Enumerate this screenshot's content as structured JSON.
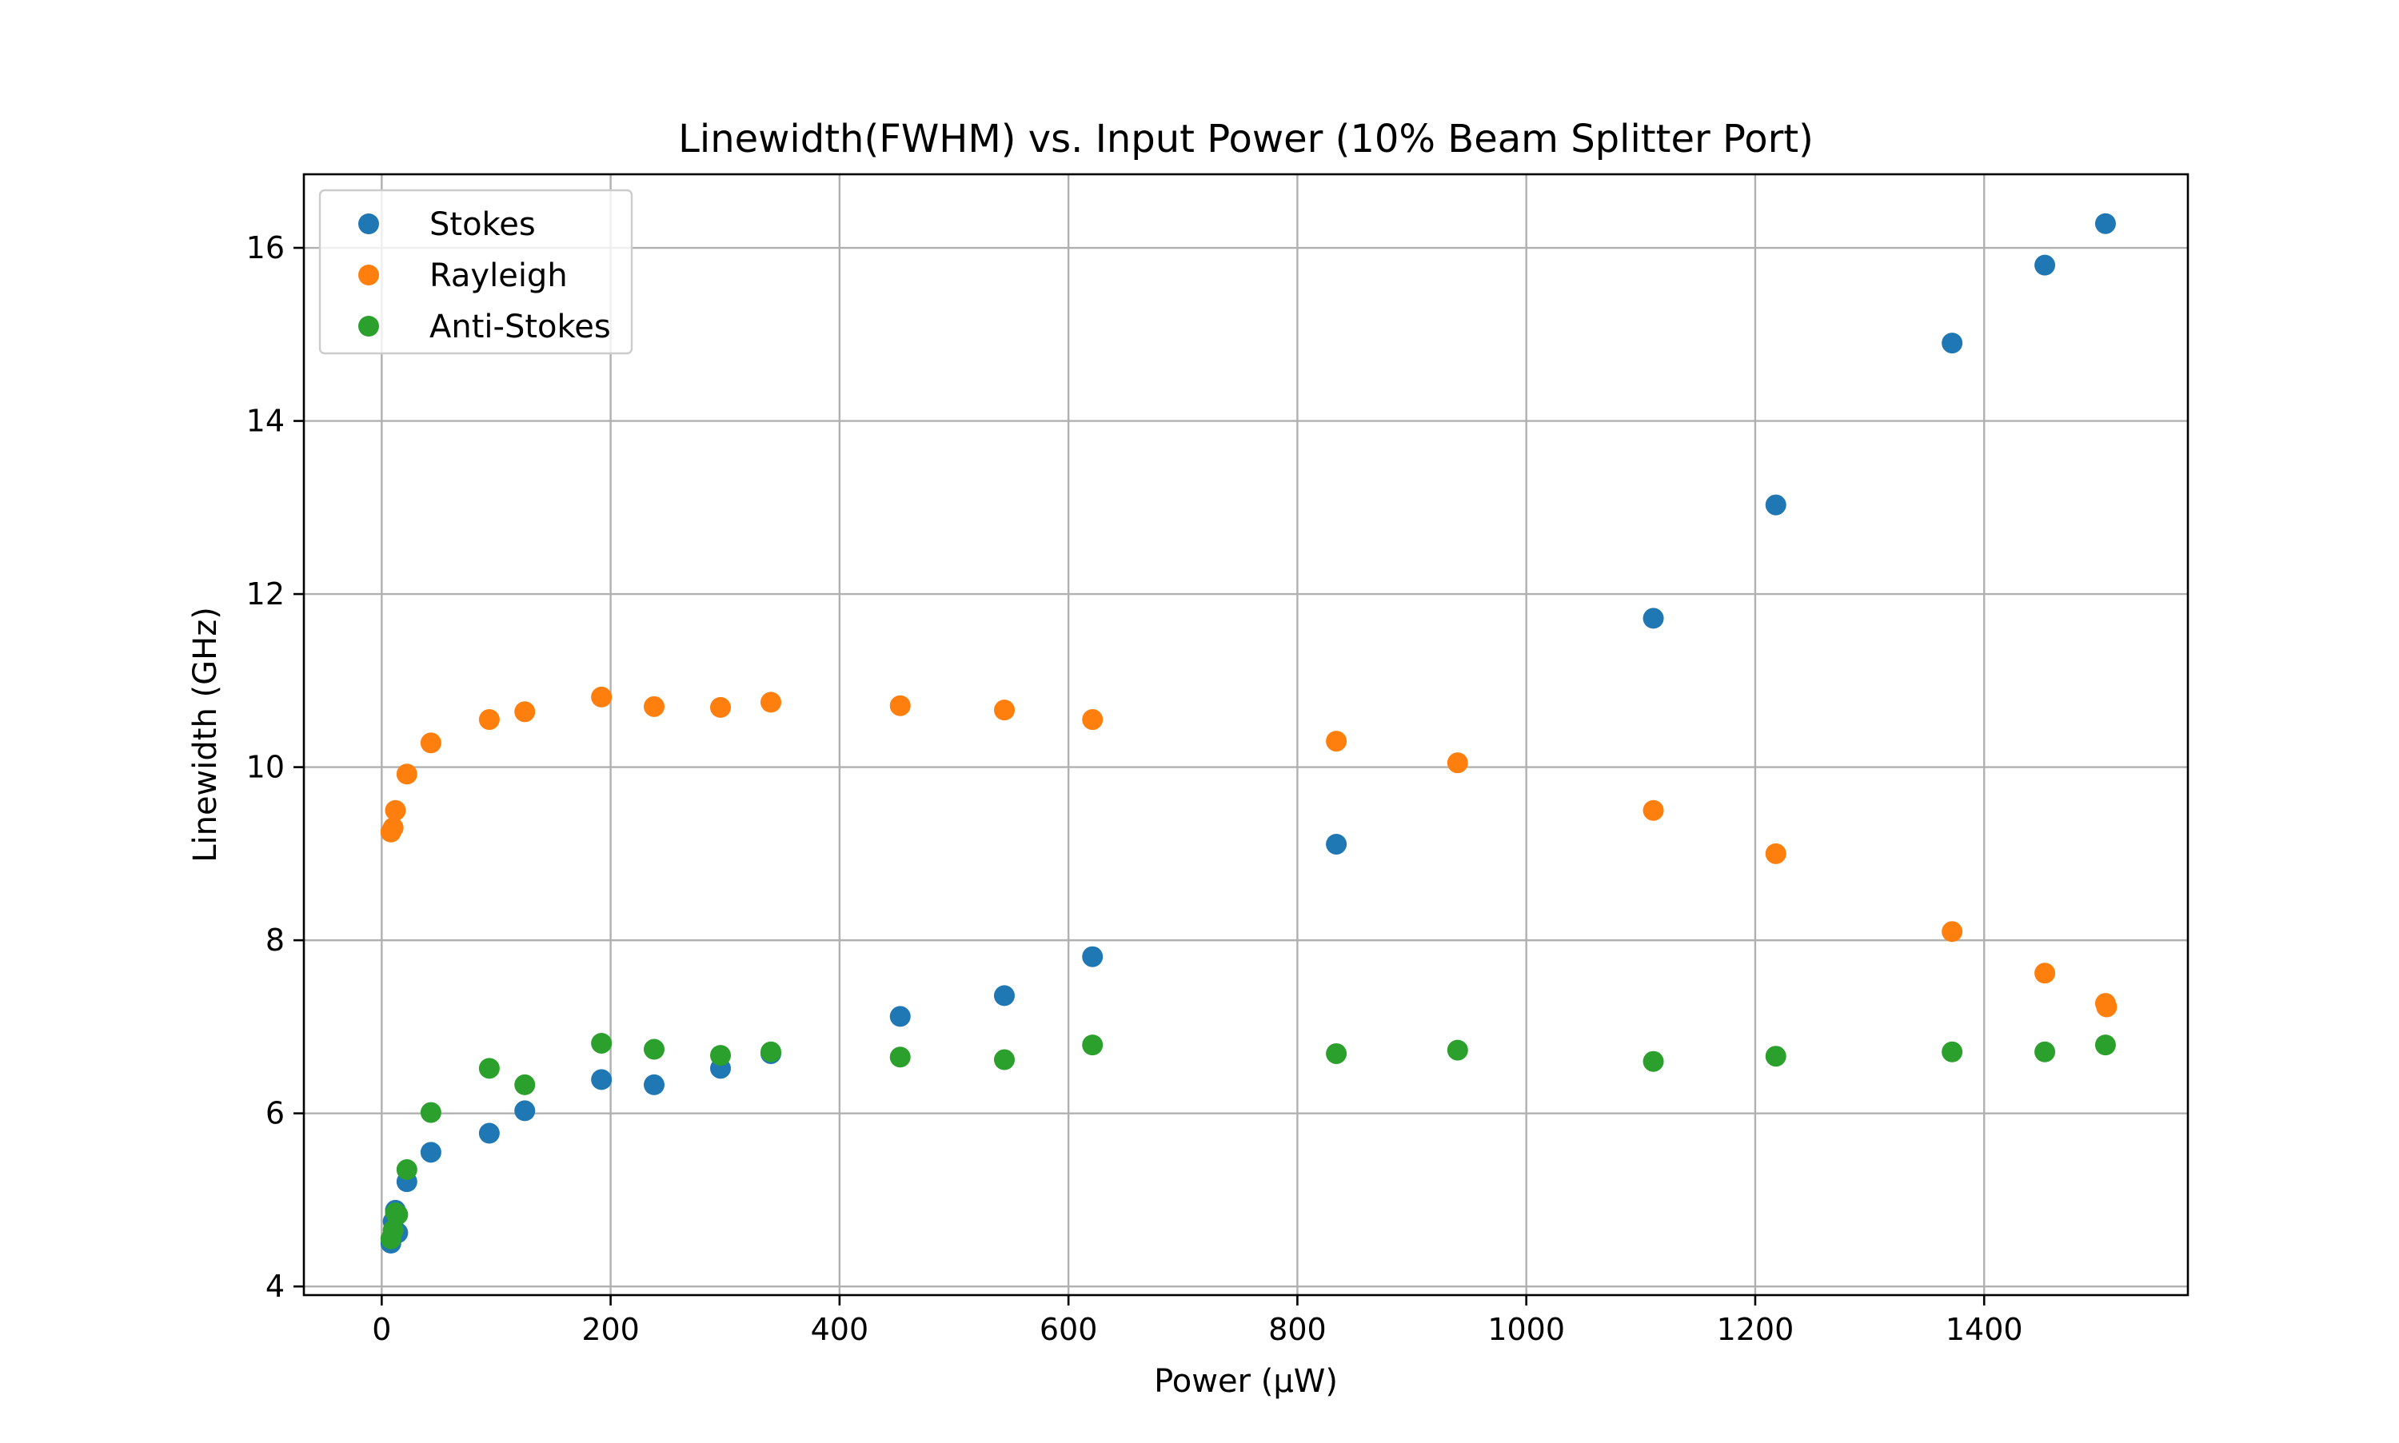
{
  "chart_data": {
    "type": "scatter",
    "title": "Linewidth(FWHM) vs. Input Power (10% Beam Splitter Port)",
    "xlabel": "Power (µW)",
    "ylabel": "Linewidth (GHz)",
    "xlim": [
      -68,
      1578
    ],
    "ylim": [
      3.9,
      16.85
    ],
    "xticks": [
      0,
      200,
      400,
      600,
      800,
      1000,
      1200,
      1400
    ],
    "yticks": [
      4,
      6,
      8,
      10,
      12,
      14,
      16
    ],
    "grid": true,
    "legend_position": "upper-left",
    "series": [
      {
        "name": "Stokes",
        "color": "#1f77b4",
        "points": [
          [
            8,
            4.5
          ],
          [
            10,
            4.75
          ],
          [
            12,
            4.88
          ],
          [
            14,
            4.62
          ],
          [
            22,
            5.21
          ],
          [
            43,
            5.55
          ],
          [
            94,
            5.77
          ],
          [
            125,
            6.03
          ],
          [
            192,
            6.39
          ],
          [
            238,
            6.33
          ],
          [
            296,
            6.52
          ],
          [
            340,
            6.69
          ],
          [
            453,
            7.12
          ],
          [
            544,
            7.36
          ],
          [
            621,
            7.81
          ],
          [
            834,
            9.11
          ],
          [
            1111,
            11.72
          ],
          [
            1218,
            13.03
          ],
          [
            1372,
            14.9
          ],
          [
            1453,
            15.8
          ],
          [
            1506,
            16.28
          ]
        ]
      },
      {
        "name": "Rayleigh",
        "color": "#ff7f0e",
        "points": [
          [
            8,
            9.25
          ],
          [
            10,
            9.3
          ],
          [
            12,
            9.5
          ],
          [
            22,
            9.92
          ],
          [
            43,
            10.28
          ],
          [
            94,
            10.55
          ],
          [
            125,
            10.64
          ],
          [
            192,
            10.81
          ],
          [
            238,
            10.7
          ],
          [
            296,
            10.69
          ],
          [
            340,
            10.75
          ],
          [
            453,
            10.71
          ],
          [
            544,
            10.66
          ],
          [
            621,
            10.55
          ],
          [
            834,
            10.3
          ],
          [
            940,
            10.05
          ],
          [
            1111,
            9.5
          ],
          [
            1218,
            9.0
          ],
          [
            1372,
            8.1
          ],
          [
            1453,
            7.62
          ],
          [
            1506,
            7.27
          ],
          [
            1507,
            7.23
          ]
        ]
      },
      {
        "name": "Anti-Stokes",
        "color": "#2ca02c",
        "points": [
          [
            8,
            4.55
          ],
          [
            10,
            4.65
          ],
          [
            12,
            4.85
          ],
          [
            14,
            4.83
          ],
          [
            22,
            5.35
          ],
          [
            43,
            6.01
          ],
          [
            94,
            6.52
          ],
          [
            125,
            6.33
          ],
          [
            192,
            6.81
          ],
          [
            238,
            6.74
          ],
          [
            296,
            6.67
          ],
          [
            340,
            6.71
          ],
          [
            453,
            6.65
          ],
          [
            544,
            6.62
          ],
          [
            621,
            6.79
          ],
          [
            834,
            6.69
          ],
          [
            940,
            6.73
          ],
          [
            1111,
            6.6
          ],
          [
            1218,
            6.66
          ],
          [
            1372,
            6.71
          ],
          [
            1453,
            6.71
          ],
          [
            1506,
            6.79
          ]
        ]
      }
    ]
  }
}
